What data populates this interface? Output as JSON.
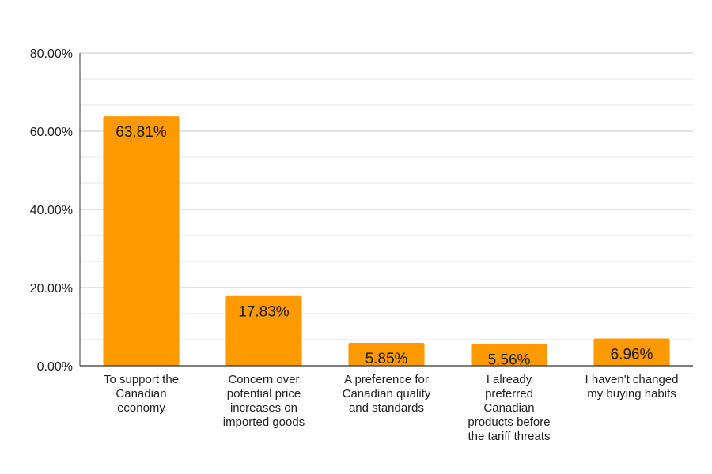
{
  "chart_data": {
    "type": "bar",
    "categories": [
      [
        "To support the",
        "Canadian",
        "economy"
      ],
      [
        "Concern over",
        "potential price",
        "increases on",
        "imported goods"
      ],
      [
        "A preference for",
        "Canadian quality",
        "and standards"
      ],
      [
        "I already",
        "preferred",
        "Canadian",
        "products before",
        "the tariff threats"
      ],
      [
        "I haven't changed",
        "my buying habits"
      ]
    ],
    "values": [
      63.81,
      17.83,
      5.85,
      5.56,
      6.96
    ],
    "data_labels": [
      "63.81%",
      "17.83%",
      "5.85%",
      "5.56%",
      "6.96%"
    ],
    "ylim": [
      0,
      80
    ],
    "y_ticks": [
      {
        "value": 0,
        "label": "0.00%"
      },
      {
        "value": 20,
        "label": "20.00%"
      },
      {
        "value": 40,
        "label": "40.00%"
      },
      {
        "value": 60,
        "label": "60.00%"
      },
      {
        "value": 80,
        "label": "80.00%"
      }
    ],
    "minor_grid_step": 6.6667,
    "bar_color": "#FF9900",
    "grid": true,
    "legend": "none"
  }
}
